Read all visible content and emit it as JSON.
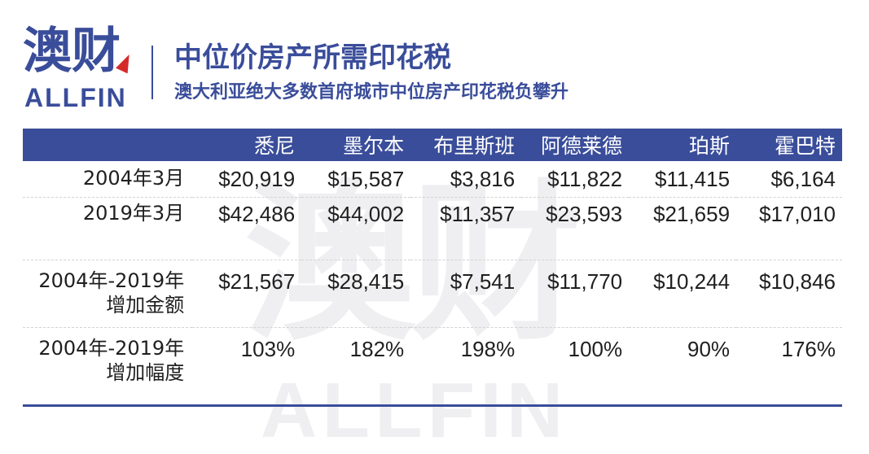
{
  "brand": {
    "logo_cn": "澳财",
    "logo_en": "ALLFIN",
    "accent_color": "#3a4d9a",
    "mark_color": "#d62a2a"
  },
  "header": {
    "title": "中位价房产所需印花税",
    "subtitle": "澳大利亚绝大多数首府城市中位房产印花税负攀升"
  },
  "table": {
    "columns": [
      "",
      "悉尼",
      "墨尔本",
      "布里斯班",
      "阿德莱德",
      "珀斯",
      "霍巴特"
    ],
    "rows": [
      {
        "label_line1": "2004年3月",
        "label_line2": "",
        "values": [
          "$20,919",
          "$15,587",
          "$3,816",
          "$11,822",
          "$11,415",
          "$6,164"
        ]
      },
      {
        "label_line1": "2019年3月",
        "label_line2": "",
        "values": [
          "$42,486",
          "$44,002",
          "$11,357",
          "$23,593",
          "$21,659",
          "$17,010"
        ]
      },
      {
        "label_line1": "2004年-2019年",
        "label_line2": "增加金额",
        "values": [
          "$21,567",
          "$28,415",
          "$7,541",
          "$11,770",
          "$10,244",
          "$10,846"
        ]
      },
      {
        "label_line1": "2004年-2019年",
        "label_line2": "增加幅度",
        "values": [
          "103%",
          "182%",
          "198%",
          "100%",
          "90%",
          "176%"
        ]
      }
    ]
  }
}
